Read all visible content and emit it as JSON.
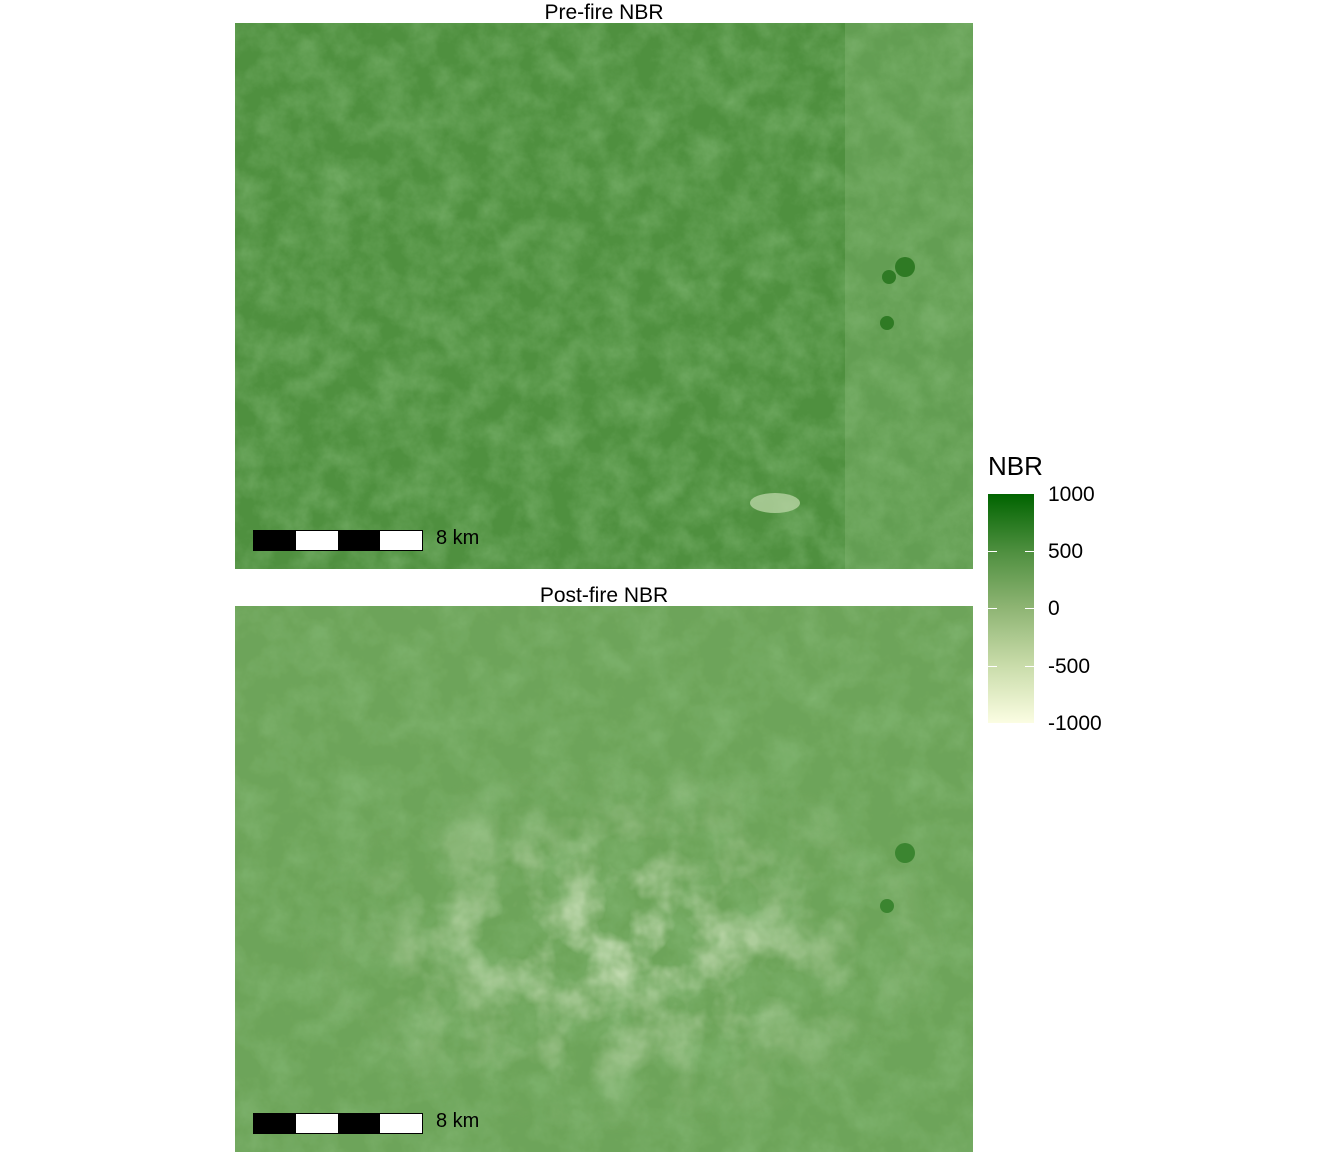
{
  "panels": [
    {
      "title": "Pre-fire NBR",
      "scalebar_label": "8 km",
      "base_color": "#4f903f"
    },
    {
      "title": "Post-fire NBR",
      "scalebar_label": "8 km",
      "base_color": "#66a052"
    }
  ],
  "legend": {
    "title": "NBR",
    "range": [
      -1000,
      1000
    ],
    "ticks": [
      "1000",
      "500",
      "0",
      "-500",
      "-1000"
    ],
    "colors": {
      "high": "#006400",
      "low": "#fbfde2"
    }
  }
}
